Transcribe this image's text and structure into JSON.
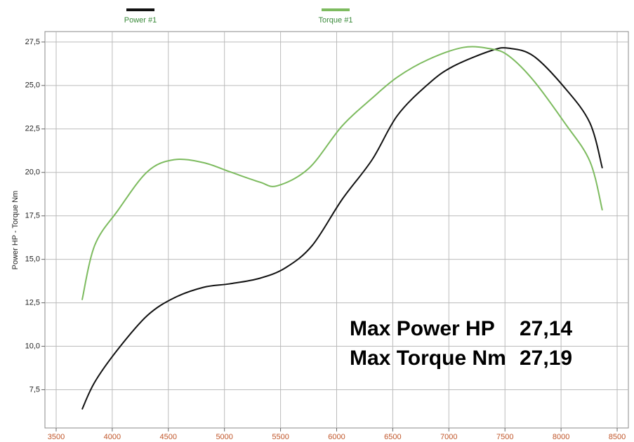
{
  "chart_data": {
    "type": "line",
    "ylabel": "Power HP - Torque Nm",
    "xlim": [
      3400,
      8600
    ],
    "ylim": [
      5.3,
      28.1
    ],
    "xticks": [
      3500,
      4000,
      4500,
      5000,
      5500,
      6000,
      6500,
      7000,
      7500,
      8000,
      8500
    ],
    "yticks": [
      {
        "value": 7.5,
        "label": "7,5"
      },
      {
        "value": 10,
        "label": "10,0"
      },
      {
        "value": 12.5,
        "label": "12,5"
      },
      {
        "value": 15,
        "label": "15,0"
      },
      {
        "value": 17.5,
        "label": "17,5"
      },
      {
        "value": 20,
        "label": "20,0"
      },
      {
        "value": 22.5,
        "label": "22,5"
      },
      {
        "value": 25,
        "label": "25,0"
      },
      {
        "value": 27.5,
        "label": "27,5"
      }
    ],
    "grid": true,
    "series": [
      {
        "name": "Power #1",
        "color": "#111111",
        "x": [
          3731,
          3844,
          4051,
          4313,
          4551,
          4814,
          5046,
          5315,
          5546,
          5784,
          6047,
          6316,
          6541,
          6816,
          7035,
          7380,
          7536,
          7755,
          8031,
          8256,
          8368
        ],
        "values": [
          6.37,
          7.94,
          9.83,
          11.77,
          12.78,
          13.39,
          13.59,
          13.91,
          14.52,
          15.81,
          18.43,
          20.73,
          23.27,
          25.08,
          26.09,
          27.01,
          27.14,
          26.69,
          24.88,
          22.86,
          20.24
        ]
      },
      {
        "name": "Torque #1",
        "color": "#7dbb5f",
        "x": [
          3731,
          3844,
          4051,
          4313,
          4551,
          4814,
          5046,
          5315,
          5471,
          5753,
          6047,
          6316,
          6541,
          6816,
          7130,
          7380,
          7536,
          7755,
          8031,
          8256,
          8368
        ],
        "values": [
          12.66,
          15.81,
          17.82,
          20.04,
          20.73,
          20.56,
          20.04,
          19.44,
          19.23,
          20.24,
          22.66,
          24.27,
          25.48,
          26.49,
          27.19,
          27.1,
          26.69,
          25.28,
          22.86,
          20.65,
          17.82
        ]
      }
    ],
    "annotations": [
      {
        "label": "Max Power HP",
        "text": "27,14"
      },
      {
        "label": "Max Torque Nm",
        "text": "27,19"
      }
    ]
  }
}
